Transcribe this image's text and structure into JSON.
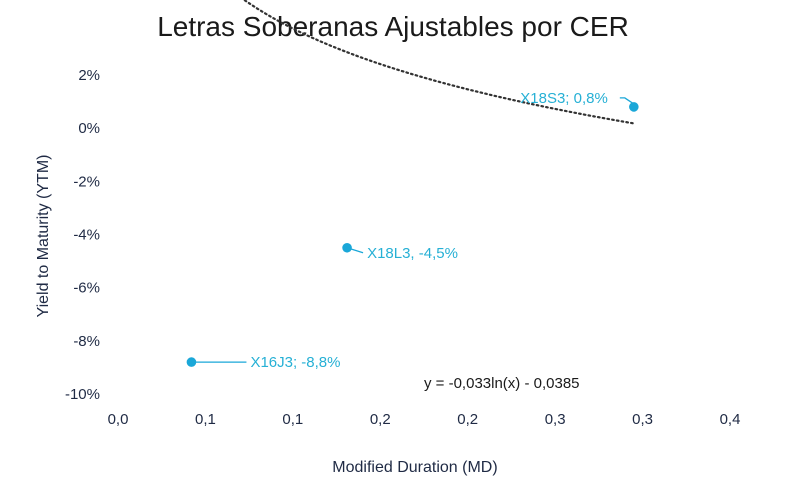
{
  "chart_data": {
    "type": "scatter",
    "title": "Letras Soberanas Ajustables por CER",
    "xlabel": "Modified Duration (MD)",
    "ylabel": "Yield to Maturity (YTM)",
    "x_tick_labels": [
      "0,0",
      "0,1",
      "0,1",
      "0,2",
      "0,2",
      "0,3",
      "0,3",
      "0,4"
    ],
    "y_tick_labels": [
      "2%",
      "0%",
      "-2%",
      "-4%",
      "-6%",
      "-8%",
      "-10%"
    ],
    "xlim": [
      0,
      0.35
    ],
    "ylim": [
      -10,
      2
    ],
    "points": [
      {
        "name": "X16J3",
        "x": 0.042,
        "y": -8.8,
        "label": "X16J3; -8,8%"
      },
      {
        "name": "X18L3",
        "x": 0.131,
        "y": -4.5,
        "label": "X18L3, -4,5%"
      },
      {
        "name": "X18S3",
        "x": 0.295,
        "y": 0.8,
        "label": "X18S3; 0,8%"
      }
    ],
    "trendline": {
      "type": "logarithmic",
      "a": -0.033,
      "b": -0.0385,
      "x_range": [
        0.042,
        0.295
      ],
      "equation": "y = -0,033ln(x) - 0,0385"
    },
    "colors": {
      "point": "#1aa7d8",
      "label": "#26b0d5",
      "trend": "#333333",
      "text": "#1f2a44"
    }
  }
}
